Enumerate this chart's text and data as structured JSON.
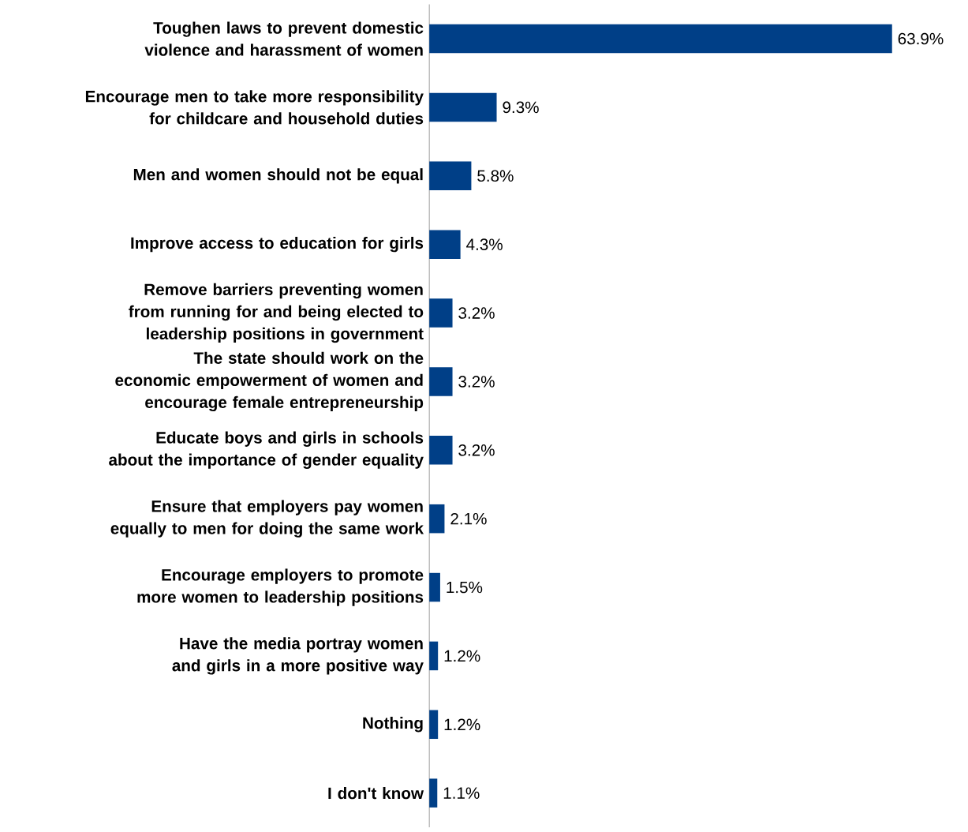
{
  "chart_data": {
    "type": "bar",
    "orientation": "horizontal",
    "categories": [
      "Toughen laws to prevent domestic violence and harassment of women",
      "Encourage men to take more responsibility for childcare and household duties",
      "Men and women should not be equal",
      "Improve access to education for girls",
      "Remove barriers preventing women from running for and being elected to leadership positions in government",
      "The state should work on the economic empowerment of women and encourage female entrepreneurship",
      "Educate boys and girls in schools about the importance of gender equality",
      "Ensure that employers pay women equally to men for doing the same work",
      "Encourage employers to promote more women to leadership positions",
      "Have the media portray women and girls in a more positive way",
      "Nothing",
      "I don't know"
    ],
    "values": [
      63.9,
      9.3,
      5.8,
      4.3,
      3.2,
      3.2,
      3.2,
      2.1,
      1.5,
      1.2,
      1.2,
      1.1
    ],
    "value_labels": [
      "63.9%",
      "9.3%",
      "5.8%",
      "4.3%",
      "3.2%",
      "3.2%",
      "3.2%",
      "2.1%",
      "1.5%",
      "1.2%",
      "1.2%",
      "1.1%"
    ],
    "color": "#003f87"
  }
}
